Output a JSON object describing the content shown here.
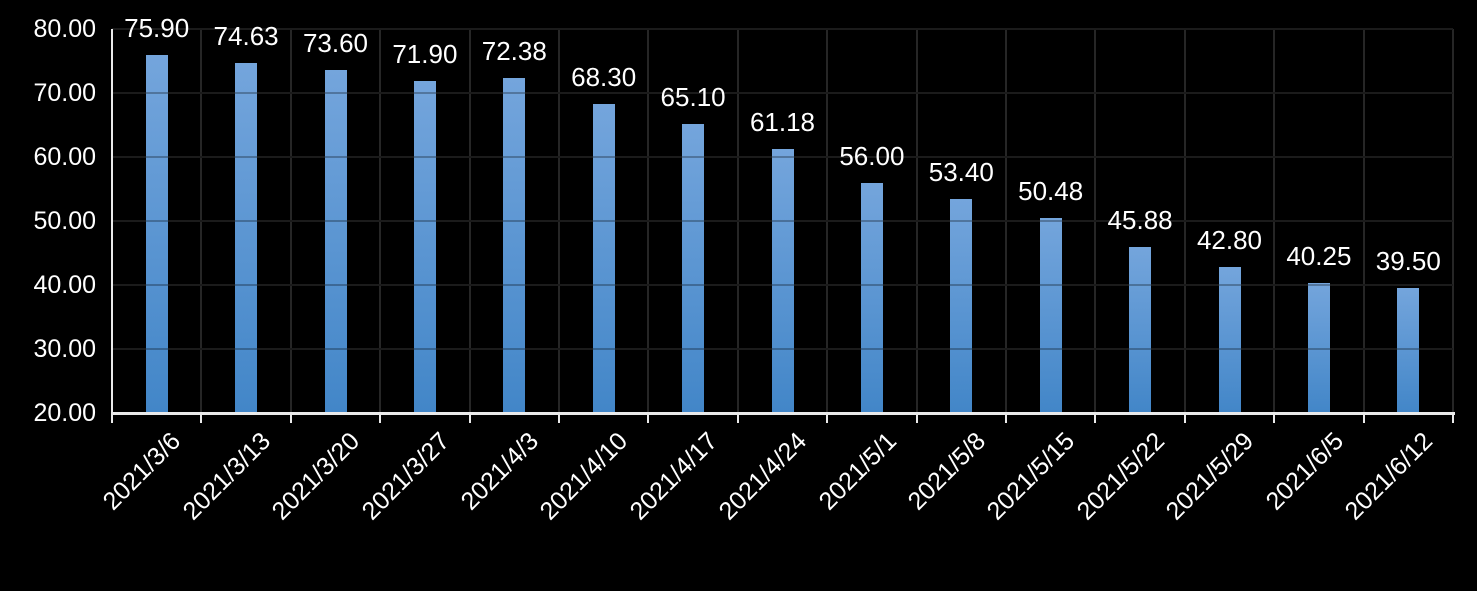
{
  "chart_data": {
    "type": "bar",
    "title": "",
    "xlabel": "",
    "ylabel": "",
    "categories": [
      "2021/3/6",
      "2021/3/13",
      "2021/3/20",
      "2021/3/27",
      "2021/4/3",
      "2021/4/10",
      "2021/4/17",
      "2021/4/24",
      "2021/5/1",
      "2021/5/8",
      "2021/5/15",
      "2021/5/22",
      "2021/5/29",
      "2021/6/5",
      "2021/6/12"
    ],
    "values": [
      75.9,
      74.63,
      73.6,
      71.9,
      72.38,
      68.3,
      65.1,
      61.18,
      56.0,
      53.4,
      50.48,
      45.88,
      42.8,
      40.25,
      39.5
    ],
    "data_labels": [
      "75.90",
      "74.63",
      "73.60",
      "71.90",
      "72.38",
      "68.30",
      "65.10",
      "61.18",
      "56.00",
      "53.40",
      "50.48",
      "45.88",
      "42.80",
      "40.25",
      "39.50"
    ],
    "y_tick_labels": [
      "80.00",
      "70.00",
      "60.00",
      "50.00",
      "40.00",
      "30.00",
      "20.00"
    ],
    "y_tick_values": [
      80,
      70,
      60,
      50,
      40,
      30,
      20
    ],
    "ylim": [
      20,
      80
    ],
    "grid": true,
    "legend_position": "none",
    "x_label_rotation_deg": 45,
    "colors": {
      "background": "#000000",
      "bar_gradient_top": "#74a5dc",
      "bar_gradient_bottom": "#4286c8",
      "gridline": "#262626",
      "gridline_over_bar": "rgba(0,0,0,0.28)",
      "axis_line": "#eaeaea",
      "text": "#ffffff"
    }
  }
}
